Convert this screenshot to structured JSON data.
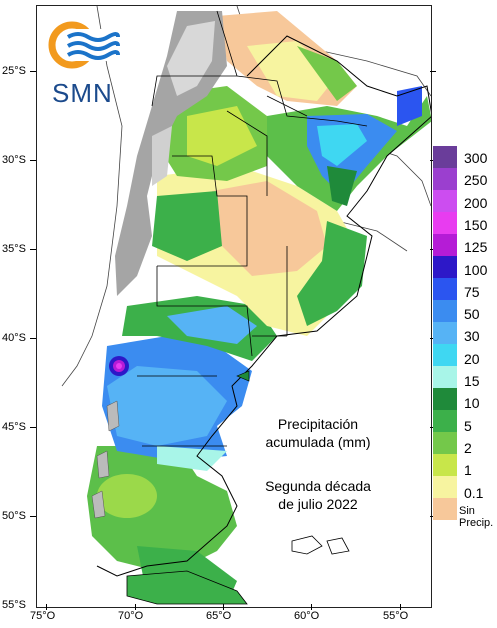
{
  "logo": {
    "name": "SMN",
    "colors": {
      "orange": "#f29a1e",
      "blue": "#1b73c9"
    }
  },
  "title": {
    "line1": "Precipitación",
    "line2": "acumulada (mm)"
  },
  "period": {
    "line1": "Segunda década",
    "line2": "de julio 2022"
  },
  "lat_labels": [
    "25°S",
    "30°S",
    "35°S",
    "40°S",
    "45°S",
    "50°S",
    "55°S"
  ],
  "lon_labels": [
    "75°O",
    "70°O",
    "65°O",
    "60°O",
    "55°O"
  ],
  "legend": [
    {
      "label": "300",
      "color": "#6a3d9a"
    },
    {
      "label": "250",
      "color": "#9b3fcf"
    },
    {
      "label": "200",
      "color": "#cc4df0"
    },
    {
      "label": "150",
      "color": "#e83cf0"
    },
    {
      "label": "125",
      "color": "#b51cd6"
    },
    {
      "label": "100",
      "color": "#2d18c8"
    },
    {
      "label": "75",
      "color": "#2b55f0"
    },
    {
      "label": "50",
      "color": "#3b8cf0"
    },
    {
      "label": "30",
      "color": "#56b3f5"
    },
    {
      "label": "20",
      "color": "#3fd7f2"
    },
    {
      "label": "15",
      "color": "#a8f5e8"
    },
    {
      "label": "10",
      "color": "#1f8a3a"
    },
    {
      "label": "5",
      "color": "#3cb04a"
    },
    {
      "label": "2",
      "color": "#74c84a"
    },
    {
      "label": "1",
      "color": "#c8e64a"
    },
    {
      "label": "0.1",
      "color": "#f7f4a0"
    },
    {
      "label": "Sin Precip.",
      "color": "#f7c89a"
    }
  ]
}
